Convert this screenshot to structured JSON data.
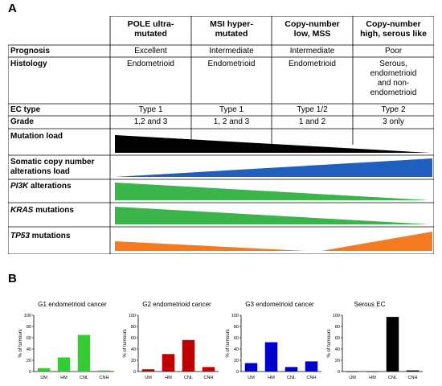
{
  "panelA_label": "A",
  "panelB_label": "B",
  "columns": [
    {
      "title_line1": "POLE ultra-",
      "title_line2": "mutated"
    },
    {
      "title_line1": "MSI hyper-",
      "title_line2": "mutated"
    },
    {
      "title_line1": "Copy-number",
      "title_line2": "low, MSS"
    },
    {
      "title_line1": "Copy-number",
      "title_line2": "high, serous like"
    }
  ],
  "rows": {
    "prognosis": {
      "label": "Prognosis",
      "values": [
        "Excellent",
        "Intermediate",
        "Intermediate",
        "Poor"
      ]
    },
    "histology": {
      "label": "Histology",
      "values": [
        "Endometrioid",
        "Endometrioid",
        "Endometrioid",
        [
          "Serous,",
          "endometrioid",
          "and non-",
          "endometrioid"
        ]
      ]
    },
    "ec_type": {
      "label": "EC type",
      "values": [
        "Type 1",
        "Type 1",
        "Type 1/2",
        "Type 2"
      ]
    },
    "grade": {
      "label": "Grade",
      "values": [
        "1,2 and 3",
        "1, 2 and 3",
        "1 and 2",
        "3 only"
      ]
    },
    "mutation_load": {
      "label": "Mutation load"
    },
    "scna_load": {
      "label_line1": "Somatic copy number",
      "label_line2": "alterations load"
    },
    "pi3k": {
      "label_italic": "PI3K",
      "label_rest": " alterations"
    },
    "kras": {
      "label_italic": "KRAS",
      "label_rest": " mutations"
    },
    "tp53": {
      "label_italic": "TP53",
      "label_rest": " mutations"
    }
  },
  "colors": {
    "black": "#000000",
    "blue": "#1f5fbf",
    "green": "#39b54a",
    "orange": "#f47b20",
    "g1_bar": "#33cc33",
    "g2_bar": "#c00000",
    "g3_bar": "#0000cc",
    "serous_bar": "#000000"
  },
  "chart_data": [
    {
      "type": "bar",
      "title": "G1 endometrioid cancer",
      "ylabel": "% of tumours",
      "categories": [
        "UM",
        "HM",
        "CNL",
        "CNH"
      ],
      "values": [
        6,
        25,
        65,
        2
      ],
      "ylim": [
        0,
        100
      ]
    },
    {
      "type": "bar",
      "title": "G2 endometrioid cancer",
      "ylabel": "% of tumours",
      "categories": [
        "UM",
        "HM",
        "CNL",
        "CNH"
      ],
      "values": [
        4,
        31,
        56,
        8
      ],
      "ylim": [
        0,
        100
      ]
    },
    {
      "type": "bar",
      "title": "G3 endometrioid cancer",
      "ylabel": "% of tumours",
      "categories": [
        "UM",
        "HM",
        "CNL",
        "CNH"
      ],
      "values": [
        15,
        52,
        8,
        18
      ],
      "ylim": [
        0,
        100
      ]
    },
    {
      "type": "bar",
      "title": "Serous EC",
      "ylabel": "% of tumours",
      "categories": [
        "UM",
        "HM",
        "CNL",
        "CNH"
      ],
      "values": [
        0,
        0,
        97,
        2
      ],
      "ylim": [
        0,
        100
      ]
    }
  ],
  "yticks": [
    "0",
    "20",
    "40",
    "60",
    "80",
    "100"
  ]
}
